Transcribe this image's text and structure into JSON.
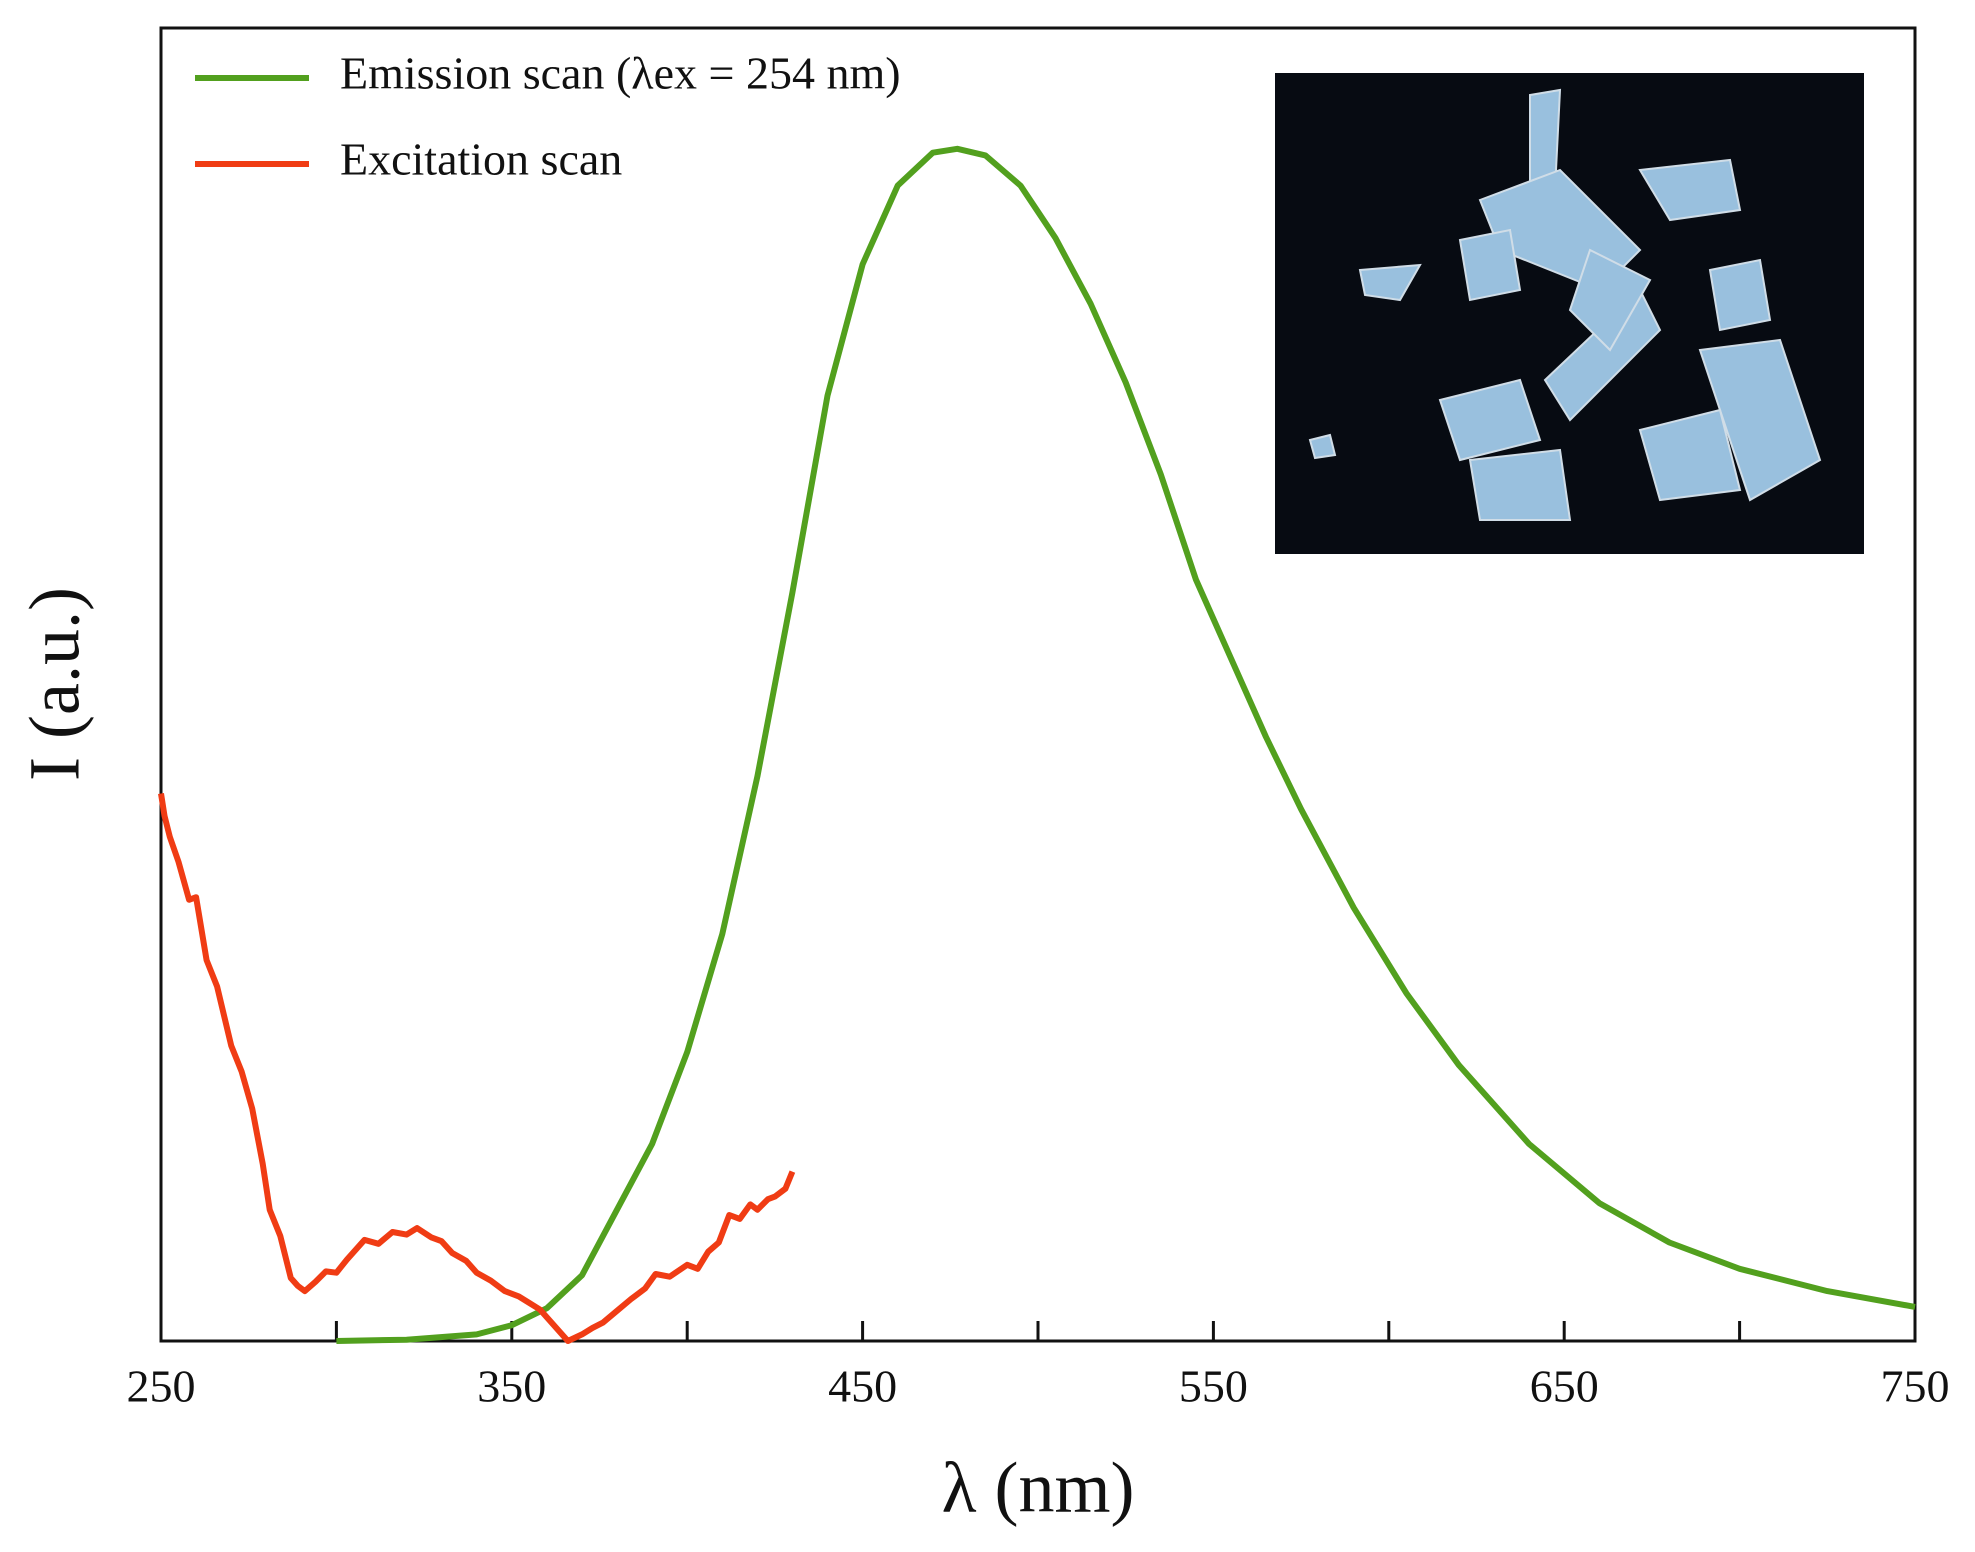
{
  "chart_data": {
    "type": "line",
    "xlabel": "λ (nm)",
    "ylabel": "I (a.u.)",
    "xlim": [
      250,
      750
    ],
    "ylim": [
      0,
      100
    ],
    "xticks": [
      250,
      350,
      450,
      550,
      650,
      750
    ],
    "xminorticks": [
      300,
      400,
      500,
      600,
      700
    ],
    "legend": "upper left",
    "series": [
      {
        "name": "Emission scan (λex = 254 nm)",
        "color": "#52a01e",
        "x": [
          300,
          320,
          340,
          350,
          360,
          370,
          380,
          390,
          400,
          410,
          420,
          430,
          440,
          450,
          460,
          470,
          477,
          485,
          495,
          505,
          515,
          525,
          535,
          545,
          555,
          565,
          575,
          590,
          605,
          620,
          640,
          660,
          680,
          700,
          725,
          750
        ],
        "values": [
          0,
          0.1,
          0.5,
          1.2,
          2.5,
          5,
          10,
          15,
          22,
          31,
          43,
          57,
          72,
          82,
          88,
          90.5,
          90.8,
          90.3,
          88,
          84,
          79,
          73,
          66,
          58,
          52,
          46,
          40.5,
          33,
          26.5,
          21,
          15,
          10.5,
          7.5,
          5.5,
          3.8,
          2.6
        ]
      },
      {
        "name": "Excitation scan",
        "color": "#f03c14",
        "x": [
          250,
          251,
          252.5,
          255,
          258,
          260,
          263,
          266,
          270,
          273,
          276,
          279,
          281,
          284,
          287,
          289,
          291,
          294,
          297,
          300,
          303,
          308,
          312,
          316,
          320,
          323,
          327,
          330,
          333,
          337,
          340,
          344,
          348,
          352,
          355,
          358,
          362,
          366,
          370,
          373,
          376,
          380,
          384,
          388,
          391,
          395,
          400,
          403,
          406,
          409,
          412,
          415,
          418,
          420,
          423,
          425,
          428,
          430
        ],
        "values": [
          41.7,
          40,
          38.4,
          36.5,
          33.6,
          33.8,
          29,
          27,
          22.5,
          20.5,
          17.7,
          13.5,
          10,
          8,
          4.8,
          4.2,
          3.8,
          4.5,
          5.3,
          5.2,
          6.2,
          7.7,
          7.4,
          8.3,
          8.1,
          8.6,
          7.9,
          7.6,
          6.7,
          6.1,
          5.2,
          4.6,
          3.8,
          3.4,
          2.9,
          2.4,
          1.2,
          0,
          0.5,
          1,
          1.4,
          2.3,
          3.2,
          4,
          5.1,
          4.9,
          5.8,
          5.5,
          6.8,
          7.5,
          9.6,
          9.3,
          10.4,
          10,
          10.8,
          11,
          11.6,
          12.9
        ]
      }
    ]
  }
}
